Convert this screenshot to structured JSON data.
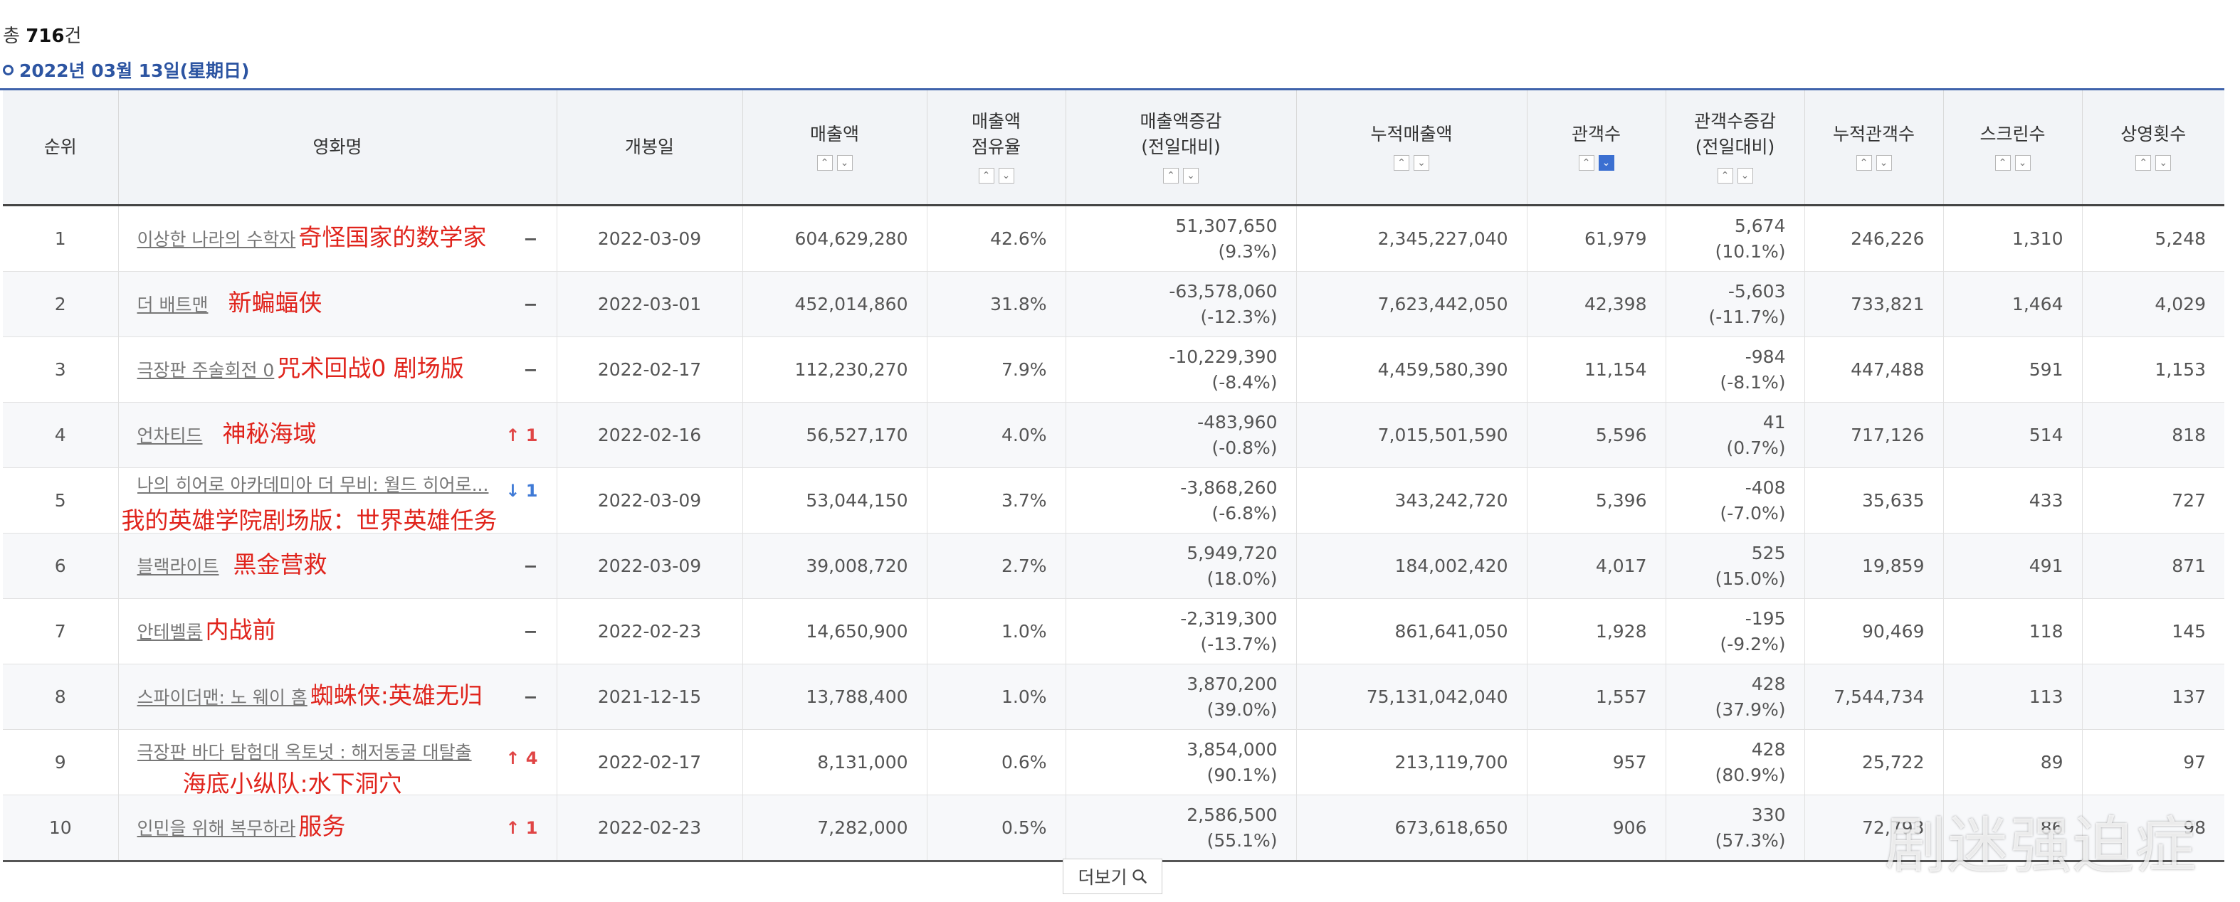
{
  "summary": {
    "prefix": "총 ",
    "count": "716",
    "suffix": "건"
  },
  "date_label": "2022년 03월 13일(星期日)",
  "headers": {
    "rank": "순위",
    "title": "영화명",
    "open_date": "개봉일",
    "sales": "매출액",
    "share_l1": "매출액",
    "share_l2": "점유율",
    "sales_change_l1": "매출액증감",
    "sales_change_l2": "(전일대비)",
    "cum_sales": "누적매출액",
    "audience": "관객수",
    "aud_change_l1": "관객수증감",
    "aud_change_l2": "(전일대비)",
    "cum_audience": "누적관객수",
    "screens": "스크린수",
    "showings": "상영횟수"
  },
  "rows": [
    {
      "rank": "1",
      "title_kr": "이상한 나라의 수학자",
      "title_cn": "奇怪国家的数学家",
      "change": "−",
      "open_date": "2022-03-09",
      "sales": "604,629,280",
      "share": "42.6%",
      "sales_diff": "51,307,650",
      "sales_pct": "(9.3%)",
      "cum_sales": "2,345,227,040",
      "audience": "61,979",
      "aud_diff": "5,674",
      "aud_pct": "(10.1%)",
      "cum_audience": "246,226",
      "screens": "1,310",
      "showings": "5,248"
    },
    {
      "rank": "2",
      "title_kr": "더 배트맨",
      "title_cn": "新蝙蝠侠",
      "change": "−",
      "open_date": "2022-03-01",
      "sales": "452,014,860",
      "share": "31.8%",
      "sales_diff": "-63,578,060",
      "sales_pct": "(-12.3%)",
      "cum_sales": "7,623,442,050",
      "audience": "42,398",
      "aud_diff": "-5,603",
      "aud_pct": "(-11.7%)",
      "cum_audience": "733,821",
      "screens": "1,464",
      "showings": "4,029"
    },
    {
      "rank": "3",
      "title_kr": "극장판 주술회전 0",
      "title_cn": "咒术回战0 剧场版",
      "change": "−",
      "open_date": "2022-02-17",
      "sales": "112,230,270",
      "share": "7.9%",
      "sales_diff": "-10,229,390",
      "sales_pct": "(-8.4%)",
      "cum_sales": "4,459,580,390",
      "audience": "11,154",
      "aud_diff": "-984",
      "aud_pct": "(-8.1%)",
      "cum_audience": "447,488",
      "screens": "591",
      "showings": "1,153"
    },
    {
      "rank": "4",
      "title_kr": "언차티드",
      "title_cn": "神秘海域",
      "change": "↑ 1",
      "open_date": "2022-02-16",
      "sales": "56,527,170",
      "share": "4.0%",
      "sales_diff": "-483,960",
      "sales_pct": "(-0.8%)",
      "cum_sales": "7,015,501,590",
      "audience": "5,596",
      "aud_diff": "41",
      "aud_pct": "(0.7%)",
      "cum_audience": "717,126",
      "screens": "514",
      "showings": "818"
    },
    {
      "rank": "5",
      "title_kr": "나의 히어로 아카데미아 더 무비: 월드 히어로...",
      "title_cn": "我的英雄学院剧场版：世界英雄任务",
      "change": "↓ 1",
      "open_date": "2022-03-09",
      "sales": "53,044,150",
      "share": "3.7%",
      "sales_diff": "-3,868,260",
      "sales_pct": "(-6.8%)",
      "cum_sales": "343,242,720",
      "audience": "5,396",
      "aud_diff": "-408",
      "aud_pct": "(-7.0%)",
      "cum_audience": "35,635",
      "screens": "433",
      "showings": "727"
    },
    {
      "rank": "6",
      "title_kr": "블랙라이트",
      "title_cn": "黑金营救",
      "change": "−",
      "open_date": "2022-03-09",
      "sales": "39,008,720",
      "share": "2.7%",
      "sales_diff": "5,949,720",
      "sales_pct": "(18.0%)",
      "cum_sales": "184,002,420",
      "audience": "4,017",
      "aud_diff": "525",
      "aud_pct": "(15.0%)",
      "cum_audience": "19,859",
      "screens": "491",
      "showings": "871"
    },
    {
      "rank": "7",
      "title_kr": "안테벨룸",
      "title_cn": "内战前",
      "change": "−",
      "open_date": "2022-02-23",
      "sales": "14,650,900",
      "share": "1.0%",
      "sales_diff": "-2,319,300",
      "sales_pct": "(-13.7%)",
      "cum_sales": "861,641,050",
      "audience": "1,928",
      "aud_diff": "-195",
      "aud_pct": "(-9.2%)",
      "cum_audience": "90,469",
      "screens": "118",
      "showings": "145"
    },
    {
      "rank": "8",
      "title_kr": "스파이더맨: 노 웨이 홈",
      "title_cn": "蜘蛛侠:英雄无归",
      "change": "−",
      "open_date": "2021-12-15",
      "sales": "13,788,400",
      "share": "1.0%",
      "sales_diff": "3,870,200",
      "sales_pct": "(39.0%)",
      "cum_sales": "75,131,042,040",
      "audience": "1,557",
      "aud_diff": "428",
      "aud_pct": "(37.9%)",
      "cum_audience": "7,544,734",
      "screens": "113",
      "showings": "137"
    },
    {
      "rank": "9",
      "title_kr": "극장판 바다 탐험대 옥토넛 : 해저동굴 대탈출",
      "title_cn": "海底小纵队:水下洞穴",
      "change": "↑ 4",
      "open_date": "2022-02-17",
      "sales": "8,131,000",
      "share": "0.6%",
      "sales_diff": "3,854,000",
      "sales_pct": "(90.1%)",
      "cum_sales": "213,119,700",
      "audience": "957",
      "aud_diff": "428",
      "aud_pct": "(80.9%)",
      "cum_audience": "25,722",
      "screens": "89",
      "showings": "97"
    },
    {
      "rank": "10",
      "title_kr": "인민을 위해 복무하라",
      "title_cn": "服务",
      "change": "↑ 1",
      "open_date": "2022-02-23",
      "sales": "7,282,000",
      "share": "0.5%",
      "sales_diff": "2,586,500",
      "sales_pct": "(55.1%)",
      "cum_sales": "673,618,650",
      "audience": "906",
      "aud_diff": "330",
      "aud_pct": "(57.3%)",
      "cum_audience": "72,793",
      "screens": "86",
      "showings": "98"
    }
  ],
  "more_button": "더보기",
  "watermark": "剧迷强迫症"
}
